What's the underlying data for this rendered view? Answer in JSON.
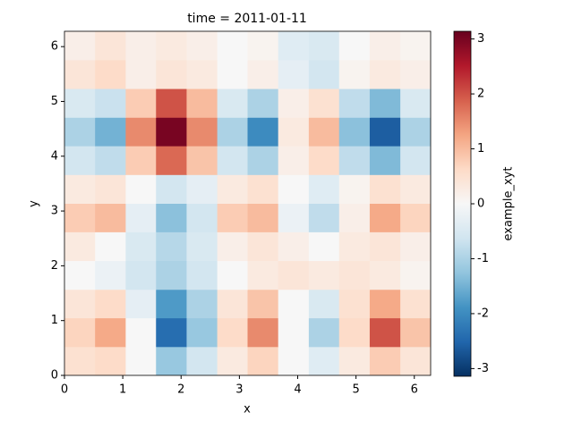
{
  "chart_data": {
    "type": "heatmap",
    "title": "time = 2011-01-11",
    "x_label": "x",
    "y_label": "y",
    "colorbar_label": "example_xyt",
    "colormap": "RdBu_r",
    "x": [
      0.26,
      0.79,
      1.31,
      1.83,
      2.36,
      2.88,
      3.4,
      3.93,
      4.45,
      4.97,
      5.5,
      6.02
    ],
    "y": [
      0.26,
      0.79,
      1.31,
      1.83,
      2.36,
      2.88,
      3.4,
      3.93,
      4.45,
      4.97,
      5.5,
      6.02
    ],
    "values": [
      [
        0.5,
        0.6,
        0,
        -1.2,
        -0.6,
        0.3,
        0.7,
        0,
        -0.4,
        0.3,
        0.8,
        0.4
      ],
      [
        0.7,
        1.2,
        0,
        -2.4,
        -1.2,
        0.6,
        1.5,
        0,
        -1.0,
        0.6,
        2.0,
        0.9
      ],
      [
        0.4,
        0.6,
        -0.3,
        -1.8,
        -1.0,
        0.4,
        0.9,
        0,
        -0.5,
        0.5,
        1.2,
        0.5
      ],
      [
        0,
        -0.2,
        -0.6,
        -1.0,
        -0.6,
        0,
        0.3,
        0.4,
        0.3,
        0.4,
        0.3,
        0.1
      ],
      [
        0.3,
        0,
        -0.5,
        -0.9,
        -0.5,
        0.2,
        0.4,
        0.2,
        0,
        0.3,
        0.4,
        0.2
      ],
      [
        0.8,
        1.0,
        -0.3,
        -1.3,
        -0.6,
        0.8,
        1.0,
        -0.2,
        -0.8,
        0.2,
        1.2,
        0.7
      ],
      [
        0.3,
        0.4,
        0,
        -0.6,
        -0.3,
        0.3,
        0.5,
        0,
        -0.4,
        0.1,
        0.5,
        0.3
      ],
      [
        -0.6,
        -0.8,
        0.8,
        1.8,
        0.9,
        -0.6,
        -1.0,
        0.2,
        0.6,
        -0.8,
        -1.4,
        -0.6
      ],
      [
        -1.0,
        -1.5,
        1.5,
        3.0,
        1.5,
        -1.0,
        -2.0,
        0.3,
        1.0,
        -1.3,
        -2.6,
        -1.0
      ],
      [
        -0.5,
        -0.7,
        0.8,
        2.0,
        1.0,
        -0.5,
        -1.0,
        0.2,
        0.5,
        -0.8,
        -1.4,
        -0.5
      ],
      [
        0.4,
        0.6,
        0.2,
        0.4,
        0.3,
        0,
        0.2,
        -0.3,
        -0.6,
        0.1,
        0.3,
        0.2
      ],
      [
        0.2,
        0.4,
        0.2,
        0.3,
        0.2,
        0,
        0.1,
        -0.4,
        -0.5,
        0,
        0.2,
        0.1
      ]
    ],
    "xlim": [
      0,
      6.28
    ],
    "ylim": [
      0,
      6.28
    ],
    "xticks": [
      0,
      1,
      2,
      3,
      4,
      5,
      6
    ],
    "yticks": [
      0,
      1,
      2,
      3,
      4,
      5,
      6
    ],
    "clim": [
      -3.14,
      3.14
    ],
    "cticks": [
      -3,
      -2,
      -1,
      0,
      1,
      2,
      3
    ]
  }
}
